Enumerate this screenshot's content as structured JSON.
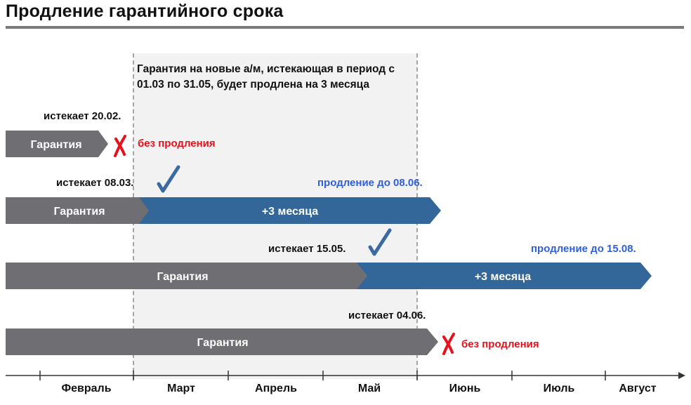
{
  "title": "Продление гарантийного срока",
  "note": "Гарантия на новые а/м, истекающая в период с 01.03 по 31.05, будет продлена на 3 месяца",
  "rows": [
    {
      "expires": "истекает 20.02.",
      "bar": "Гарантия",
      "status": "без продления"
    },
    {
      "expires": "истекает 08.03.",
      "bar": "Гарантия",
      "extension": "+3 месяца",
      "status": "продление до 08.06."
    },
    {
      "expires": "истекает 15.05.",
      "bar": "Гарантия",
      "extension": "+3 месяца",
      "status": "продление до 15.08."
    },
    {
      "expires": "истекает 04.06.",
      "bar": "Гарантия",
      "status": "без продления"
    }
  ],
  "months": [
    "Февраль",
    "Март",
    "Апрель",
    "Май",
    "Июнь",
    "Июль",
    "Август"
  ],
  "colors": {
    "grey_bar": "#6f6f73",
    "blue_bar": "#336699",
    "check": "#3a6aa0",
    "cross": "#e8101a",
    "blue_text": "#2f5fe0",
    "highlight": "#f2f2f2"
  },
  "icons": {
    "check": "check-icon",
    "cross": "cross-icon"
  }
}
